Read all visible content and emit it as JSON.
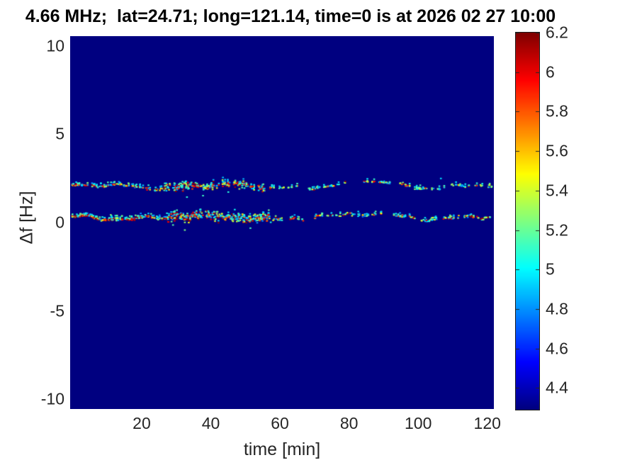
{
  "chart_data": {
    "type": "heatmap",
    "subtype": "doppler-spectrogram",
    "title": "4.66 MHz;  lat=24.71; long=121.14, time=0 is at 2026 02 27 10:00",
    "xlabel": "time [min]",
    "ylabel": "Δf [Hz]",
    "xlim": [
      -0.7,
      121.9
    ],
    "ylim": [
      -10.55,
      10.55
    ],
    "clim": [
      4.29,
      6.2
    ],
    "colormap": "jet",
    "grid": false,
    "xticks": [
      20,
      40,
      60,
      80,
      100,
      120
    ],
    "yticks": [
      10,
      5,
      0,
      -5,
      -10
    ],
    "colorbar_ticks": [
      "6.2",
      "6",
      "5.8",
      "5.6",
      "5.4",
      "5.2",
      "5",
      "4.8",
      "4.6",
      "4.4"
    ],
    "colorbar_tick_values": [
      6.2,
      6.0,
      5.8,
      5.6,
      5.4,
      5.2,
      5.0,
      4.8,
      4.6,
      4.4
    ],
    "background_value": 4.29,
    "seed": 42,
    "stripes": [
      {
        "name": "upper-doppler-trace",
        "center_hz": 2.08,
        "wave": [
          [
            0.1,
            38,
            0.5
          ],
          [
            0.07,
            16,
            2.0
          ],
          [
            0.04,
            7.5,
            4.0
          ]
        ],
        "bump": {
          "t": 87,
          "w": 9,
          "a": 0.25
        },
        "segments": [
          {
            "t0": -0.7,
            "t1": 26,
            "on": 0.85,
            "per": 3,
            "spread": 0.06,
            "hi": 0.45,
            "flank": 0.4,
            "outlier": 0.02
          },
          {
            "t0": 26,
            "t1": 56,
            "on": 0.9,
            "per": 5,
            "spread": 0.2,
            "hi": 0.38,
            "flank": 0.35,
            "outlier": 0.07
          },
          {
            "t0": 56,
            "t1": 121.9,
            "on": 0.6,
            "per": 3,
            "spread": 0.07,
            "hi": 0.15,
            "flank": 0.2,
            "outlier": 0.02
          }
        ]
      },
      {
        "name": "lower-doppler-trace",
        "center_hz": 0.33,
        "wave": [
          [
            0.09,
            44,
            2.6
          ],
          [
            0.06,
            18,
            0.8
          ],
          [
            0.045,
            8.5,
            5.0
          ]
        ],
        "bump": {
          "t": 88,
          "w": 10,
          "a": 0.15
        },
        "segments": [
          {
            "t0": -0.7,
            "t1": 27,
            "on": 0.92,
            "per": 4,
            "spread": 0.07,
            "hi": 0.55,
            "flank": 0.4,
            "outlier": 0.02
          },
          {
            "t0": 27,
            "t1": 57,
            "on": 0.95,
            "per": 6,
            "spread": 0.28,
            "hi": 0.45,
            "flank": 0.35,
            "outlier": 0.09
          },
          {
            "t0": 57,
            "t1": 121.9,
            "on": 0.66,
            "per": 3,
            "spread": 0.08,
            "hi": 0.3,
            "flank": 0.2,
            "outlier": 0.02
          }
        ]
      }
    ]
  },
  "layout_note_colors": {
    "background_deep_blue": "#000084",
    "tick_label_color": "#262626",
    "title_color": "#000000"
  }
}
